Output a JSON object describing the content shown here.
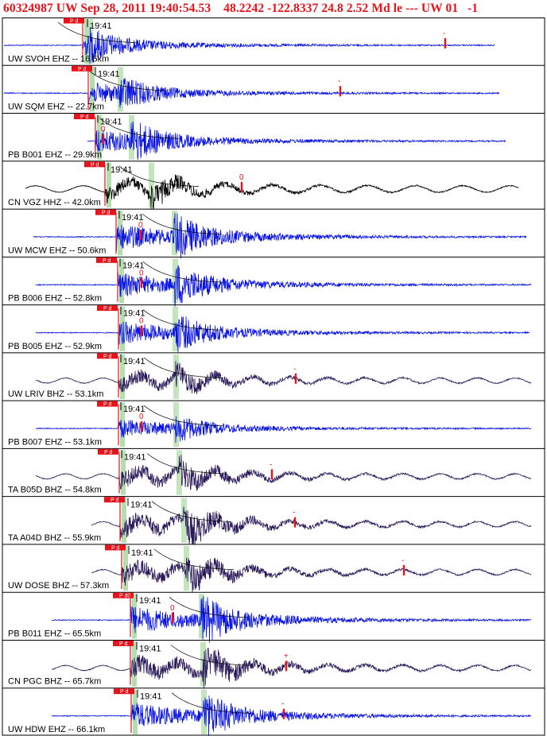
{
  "header": {
    "title": "60324987 UW Sep 28, 2011 19:40:54.53    48.2242 -122.8337 24.8 2.52 Md le --- UW 01   -1"
  },
  "colors": {
    "title": "#e8131a",
    "pick_box": "#e8131a",
    "s_window": "#b8e0b0",
    "p_window": "#a8d8a0",
    "wave_blue": "#0a14e6",
    "wave_purple": "#2a1a5a",
    "wave_black": "#000000"
  },
  "chart_data": {
    "type": "seismogram",
    "title": "60324987 UW Sep 28, 2011 19:40:54.53    48.2242 -122.8337 24.8 2.52 Md le --- UW 01   -1",
    "time_tick_label": "19:41",
    "pick_label": "P d",
    "event": {
      "id": "60324987",
      "network": "UW",
      "origin_time": "Sep 28, 2011 19:40:54.53",
      "latitude": 48.2242,
      "longitude": -122.8337,
      "depth_km": 24.8,
      "magnitude": 2.52,
      "magnitude_type": "Md"
    },
    "traces": [
      {
        "label": "UW SVOH EHZ -- 16.5km",
        "distance_km": 16.5,
        "color": "blue",
        "amp_marker": "-",
        "time_label": "19:41",
        "pick_label": "P d"
      },
      {
        "label": "UW SQM EHZ -- 22.7km",
        "distance_km": 22.7,
        "color": "blue",
        "amp_marker": "-",
        "time_label": "19:41",
        "pick_label": "P d"
      },
      {
        "label": "PB B001 EHZ -- 29.9km",
        "distance_km": 29.9,
        "color": "blue",
        "amp_marker": "0",
        "time_label": "19:41",
        "pick_label": "P d"
      },
      {
        "label": "CN VGZ HHZ -- 42.0km",
        "distance_km": 42.0,
        "color": "black",
        "amp_marker": "0",
        "time_label": "19:41",
        "pick_label": "P d"
      },
      {
        "label": "UW MCW EHZ -- 50.6km",
        "distance_km": 50.6,
        "color": "blue",
        "amp_marker": "0",
        "time_label": "19:41",
        "pick_label": "P d"
      },
      {
        "label": "PB B006 EHZ -- 52.8km",
        "distance_km": 52.8,
        "color": "blue",
        "amp_marker": "0",
        "time_label": "19:41",
        "pick_label": "P d"
      },
      {
        "label": "PB B005 EHZ -- 52.9km",
        "distance_km": 52.9,
        "color": "blue",
        "amp_marker": "0",
        "time_label": "19:41",
        "pick_label": "P d"
      },
      {
        "label": "UW LRIV BHZ -- 53.1km",
        "distance_km": 53.1,
        "color": "purple",
        "amp_marker": "-",
        "time_label": "19:41",
        "pick_label": "P d"
      },
      {
        "label": "PB B007 EHZ -- 53.1km",
        "distance_km": 53.1,
        "color": "blue",
        "amp_marker": "0",
        "time_label": "19:41",
        "pick_label": "P d"
      },
      {
        "label": "TA B05D BHZ -- 54.8km",
        "distance_km": 54.8,
        "color": "purple",
        "amp_marker": "-",
        "time_label": "19:41",
        "pick_label": "P d"
      },
      {
        "label": "TA A04D BHZ -- 55.9km",
        "distance_km": 55.9,
        "color": "purple",
        "amp_marker": "-",
        "time_label": "19:41",
        "pick_label": "P d"
      },
      {
        "label": "UW DOSE BHZ -- 57.3km",
        "distance_km": 57.3,
        "color": "purple",
        "amp_marker": "-",
        "time_label": "19:41",
        "pick_label": "P d"
      },
      {
        "label": "PB B011 EHZ -- 65.5km",
        "distance_km": 65.5,
        "color": "blue",
        "amp_marker": "0",
        "time_label": "19:41",
        "pick_label": "P d0"
      },
      {
        "label": "CN PGC BHZ -- 65.7km",
        "distance_km": 65.7,
        "color": "purple",
        "amp_marker": "+",
        "time_label": "19:41",
        "pick_label": "P d"
      },
      {
        "label": "UW HDW EHZ -- 66.1km",
        "distance_km": 66.1,
        "color": "blue",
        "amp_marker": "-",
        "time_label": "19:41",
        "pick_label": "P d"
      }
    ]
  }
}
